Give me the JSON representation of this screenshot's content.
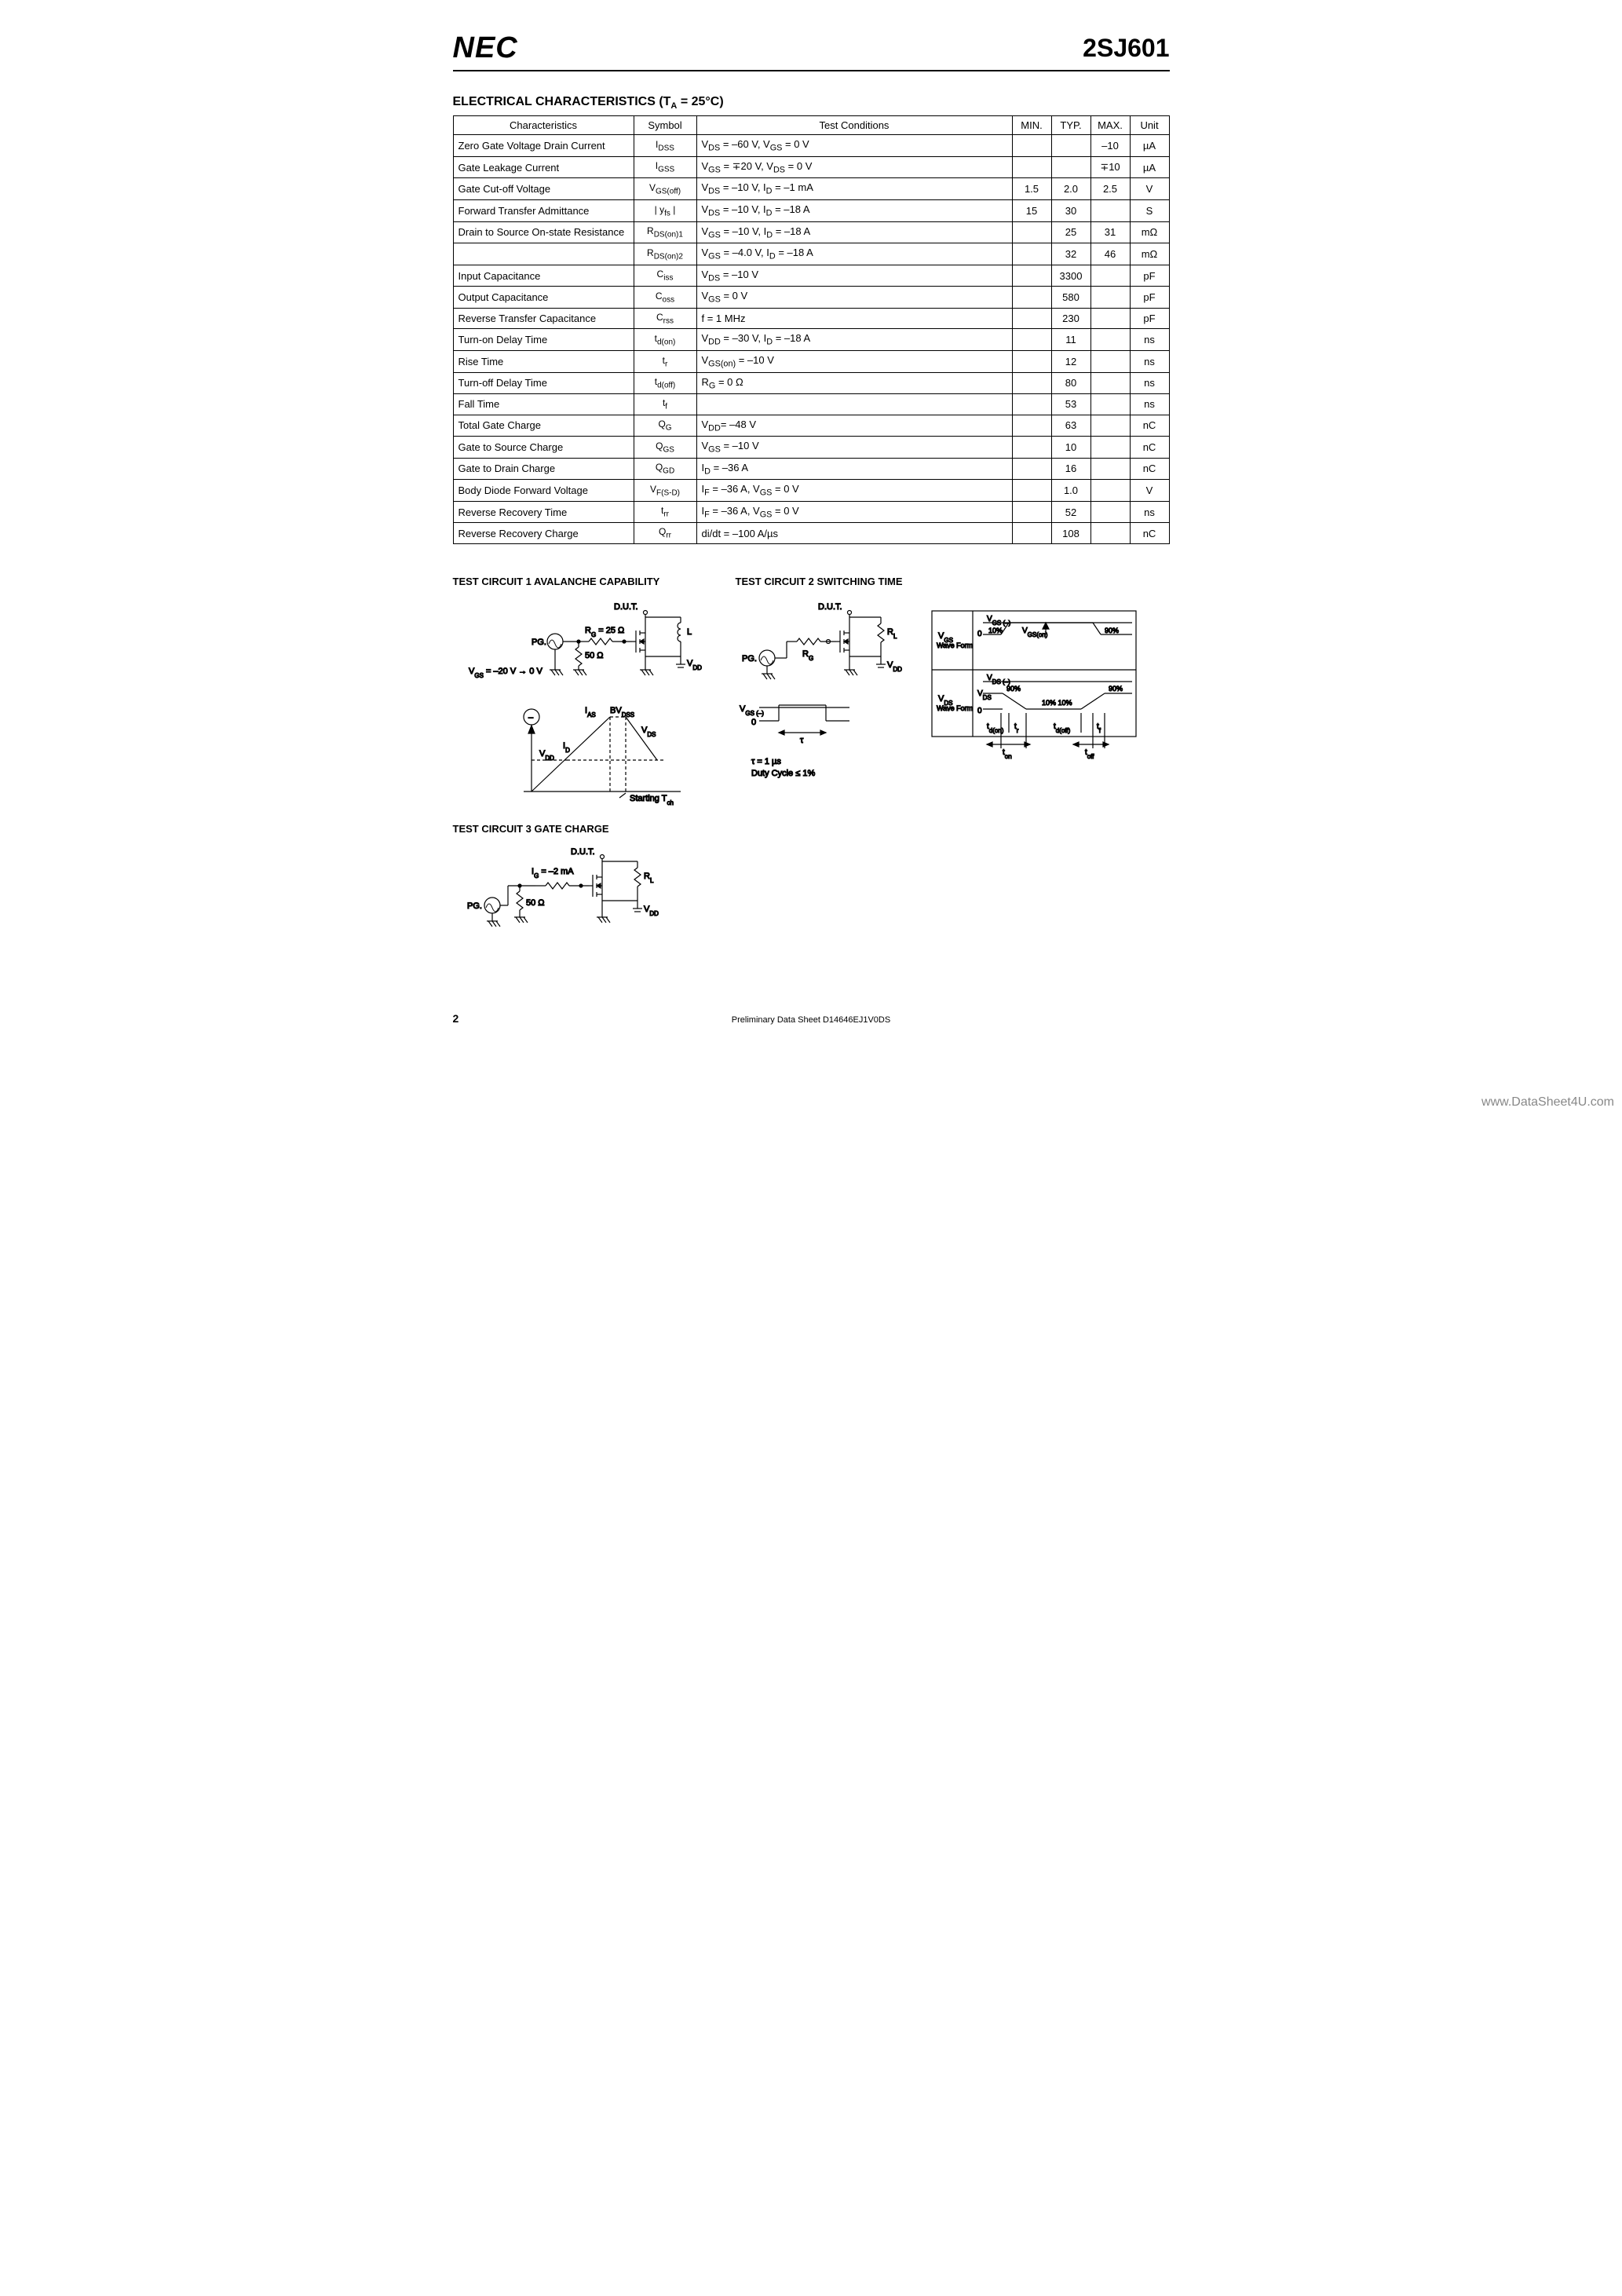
{
  "header": {
    "logo_text": "NEC",
    "part_number": "2SJ601"
  },
  "section_title_main": "ELECTRICAL CHARACTERISTICS (T",
  "section_title_sub": "A",
  "section_title_tail": " = 25°C)",
  "table": {
    "columns": [
      "Characteristics",
      "Symbol",
      "Test Conditions",
      "MIN.",
      "TYP.",
      "MAX.",
      "Unit"
    ],
    "rows": [
      {
        "c": "Zero Gate Voltage Drain Current",
        "s": "I",
        "ss": "DSS",
        "tc": "V<sub>DS</sub> = –60 V, V<sub>GS</sub> = 0 V",
        "min": "",
        "typ": "",
        "max": "–10",
        "u": "µA"
      },
      {
        "c": "Gate Leakage Current",
        "s": "I",
        "ss": "GSS",
        "tc": "V<sub>GS</sub> = ∓20 V, V<sub>DS</sub> = 0 V",
        "min": "",
        "typ": "",
        "max": "∓10",
        "u": "µA"
      },
      {
        "c": "Gate Cut-off Voltage",
        "s": "V",
        "ss": "GS(off)",
        "tc": "V<sub>DS</sub> = –10 V, I<sub>D</sub> = –1 mA",
        "min": "1.5",
        "typ": "2.0",
        "max": "2.5",
        "u": "V"
      },
      {
        "c": "Forward Transfer Admittance",
        "s": "| y",
        "ss": "fs",
        "stail": " |",
        "tc": "V<sub>DS</sub> = –10 V, I<sub>D</sub> = –18 A",
        "min": "15",
        "typ": "30",
        "max": "",
        "u": "S"
      },
      {
        "c": "Drain to Source On-state Resistance",
        "s": "R",
        "ss": "DS(on)1",
        "tc": "V<sub>GS</sub> = –10 V, I<sub>D</sub> = –18 A",
        "min": "",
        "typ": "25",
        "max": "31",
        "u": "mΩ"
      },
      {
        "c": "",
        "s": "R",
        "ss": "DS(on)2",
        "tc": "V<sub>GS</sub> = –4.0 V, I<sub>D</sub> = –18 A",
        "min": "",
        "typ": "32",
        "max": "46",
        "u": "mΩ"
      },
      {
        "c": "Input Capacitance",
        "s": "C",
        "ss": "iss",
        "tc": "V<sub>DS</sub> = –10 V",
        "min": "",
        "typ": "3300",
        "max": "",
        "u": "pF"
      },
      {
        "c": "Output Capacitance",
        "s": "C",
        "ss": "oss",
        "tc": "V<sub>GS</sub> = 0 V",
        "min": "",
        "typ": "580",
        "max": "",
        "u": "pF"
      },
      {
        "c": "Reverse Transfer Capacitance",
        "s": "C",
        "ss": "rss",
        "tc": "f = 1 MHz",
        "min": "",
        "typ": "230",
        "max": "",
        "u": "pF"
      },
      {
        "c": "Turn-on Delay Time",
        "s": "t",
        "ss": "d(on)",
        "tc": "V<sub>DD</sub> = –30 V, I<sub>D</sub> = –18 A",
        "min": "",
        "typ": "11",
        "max": "",
        "u": "ns"
      },
      {
        "c": "Rise Time",
        "s": "t",
        "ss": "r",
        "tc": "V<sub>GS(on)</sub> = –10 V",
        "min": "",
        "typ": "12",
        "max": "",
        "u": "ns"
      },
      {
        "c": "Turn-off Delay Time",
        "s": "t",
        "ss": "d(off)",
        "tc": "R<sub>G</sub> = 0 Ω",
        "min": "",
        "typ": "80",
        "max": "",
        "u": "ns"
      },
      {
        "c": "Fall Time",
        "s": "t",
        "ss": "f",
        "tc": "",
        "min": "",
        "typ": "53",
        "max": "",
        "u": "ns"
      },
      {
        "c": "Total Gate Charge",
        "s": "Q",
        "ss": "G",
        "tc": "V<sub>DD</sub>= –48 V",
        "min": "",
        "typ": "63",
        "max": "",
        "u": "nC"
      },
      {
        "c": "Gate to Source Charge",
        "s": "Q",
        "ss": "GS",
        "tc": "V<sub>GS</sub> = –10 V",
        "min": "",
        "typ": "10",
        "max": "",
        "u": "nC"
      },
      {
        "c": "Gate to Drain Charge",
        "s": "Q",
        "ss": "GD",
        "tc": "I<sub>D</sub> = –36 A",
        "min": "",
        "typ": "16",
        "max": "",
        "u": "nC"
      },
      {
        "c": "Body Diode Forward Voltage",
        "s": "V",
        "ss": "F(S-D)",
        "tc": "I<sub>F</sub> = –36 A, V<sub>GS</sub> = 0 V",
        "min": "",
        "typ": "1.0",
        "max": "",
        "u": "V"
      },
      {
        "c": "Reverse Recovery Time",
        "s": "t",
        "ss": "rr",
        "tc": "I<sub>F</sub> = –36 A, V<sub>GS</sub> = 0 V",
        "min": "",
        "typ": "52",
        "max": "",
        "u": "ns"
      },
      {
        "c": "Reverse Recovery Charge",
        "s": "Q",
        "ss": "rr",
        "tc": "di/dt = –100 A/µs",
        "min": "",
        "typ": "108",
        "max": "",
        "u": "nC"
      }
    ]
  },
  "circuits": {
    "c1_title": "TEST CIRCUIT 1  AVALANCHE CAPABILITY",
    "c2_title": "TEST CIRCUIT 2  SWITCHING TIME",
    "c3_title": "TEST CIRCUIT 3  GATE CHARGE",
    "c1": {
      "dut": "D.U.T.",
      "rg": "R<tspan baseline-shift=\"sub\" font-size=\"8\">G</tspan> = 25 Ω",
      "r50": "50 Ω",
      "pg": "PG.",
      "vgs": "V<tspan baseline-shift=\"sub\" font-size=\"8\">GS</tspan> = –20 V → 0 V",
      "L": "L",
      "vdd": "V<tspan baseline-shift=\"sub\" font-size=\"8\">DD</tspan>",
      "ias": "I<tspan baseline-shift=\"sub\" font-size=\"8\">AS</tspan>",
      "bvdss": "BV<tspan baseline-shift=\"sub\" font-size=\"8\">DSS</tspan>",
      "vds": "V<tspan baseline-shift=\"sub\" font-size=\"8\">DS</tspan>",
      "id": "I<tspan baseline-shift=\"sub\" font-size=\"8\">D</tspan>",
      "vdd2": "V<tspan baseline-shift=\"sub\" font-size=\"8\">DD</tspan>",
      "start": "Starting T<tspan baseline-shift=\"sub\" font-size=\"8\">ch</tspan>",
      "minus": "–"
    },
    "c2": {
      "dut": "D.U.T.",
      "rl": "R<tspan baseline-shift=\"sub\" font-size=\"8\">L</tspan>",
      "rg": "R<tspan baseline-shift=\"sub\" font-size=\"8\">G</tspan>",
      "pg": "PG.",
      "vdd": "V<tspan baseline-shift=\"sub\" font-size=\"8\">DD</tspan>",
      "vgsm": "V<tspan baseline-shift=\"sub\" font-size=\"8\">GS (–)</tspan>",
      "zero": "0",
      "tau": "τ",
      "tau_note": "τ = 1 µs",
      "duty": "Duty Cycle ≤ 1%",
      "vgs_wave": "V<tspan baseline-shift=\"sub\" font-size=\"8\">GS</tspan>",
      "vds_wave": "V<tspan baseline-shift=\"sub\" font-size=\"8\">DS</tspan>",
      "wave_form": "Wave Form",
      "vgsneg": "V<tspan baseline-shift=\"sub\" font-size=\"8\">GS (–)</tspan>",
      "vgson": "V<tspan baseline-shift=\"sub\" font-size=\"8\">GS(on)</tspan>",
      "vdsneg": "V<tspan baseline-shift=\"sub\" font-size=\"8\">DS (–)</tspan>",
      "vds": "V<tspan baseline-shift=\"sub\" font-size=\"8\">DS</tspan>",
      "p90": "90%",
      "p10": "10%",
      "p1010": "10% 10%",
      "tdon": "t<tspan baseline-shift=\"sub\" font-size=\"8\">d(on)</tspan>",
      "tr": "t<tspan baseline-shift=\"sub\" font-size=\"8\">r</tspan>",
      "tdoff": "t<tspan baseline-shift=\"sub\" font-size=\"8\">d(off)</tspan>",
      "tf": "t<tspan baseline-shift=\"sub\" font-size=\"8\">f</tspan>",
      "ton": "t<tspan baseline-shift=\"sub\" font-size=\"8\">on</tspan>",
      "toff": "t<tspan baseline-shift=\"sub\" font-size=\"8\">off</tspan>"
    },
    "c3": {
      "dut": "D.U.T.",
      "ig": "I<tspan baseline-shift=\"sub\" font-size=\"8\">G</tspan> = –2 mA",
      "rl": "R<tspan baseline-shift=\"sub\" font-size=\"8\">L</tspan>",
      "r50": "50 Ω",
      "pg": "PG.",
      "vdd": "V<tspan baseline-shift=\"sub\" font-size=\"8\">DD</tspan>"
    }
  },
  "footer": {
    "page_number": "2",
    "doc": "Preliminary Data Sheet  D14646EJ1V0DS",
    "watermark": "www.DataSheet4U.com"
  }
}
